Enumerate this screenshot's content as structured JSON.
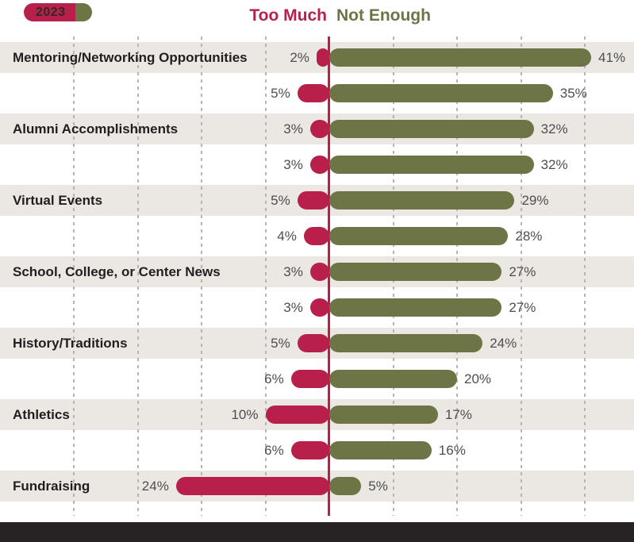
{
  "legend": {
    "year": "2023"
  },
  "headers": {
    "too_much": "Too Much",
    "not_enough": "Not Enough"
  },
  "colors": {
    "too_much_red": "#b81f4b",
    "not_enough_green": "#6d7446",
    "row_band": "#ebe7e3",
    "footer_bar": "#272324",
    "value_text": "#4e4e50",
    "category_text": "#221e1f"
  },
  "chart_data": {
    "type": "bar",
    "orientation": "horizontal-diverging",
    "title": "",
    "unit": "%",
    "series_labels": {
      "left": "Too Much",
      "right": "Not Enough"
    },
    "legend_entries": [
      "2023"
    ],
    "gridline_interval_pct": 10,
    "axis": {
      "left_max_pct": 30,
      "right_max_pct": 48,
      "grid": "dashed-vertical",
      "center_axis_color": "#b81f4b"
    },
    "rows": [
      {
        "label": "Mentoring/Networking Opportunities",
        "too_much": 2,
        "not_enough": 41,
        "shaded_band": true
      },
      {
        "label": "",
        "too_much": 5,
        "not_enough": 35,
        "shaded_band": false
      },
      {
        "label": "Alumni Accomplishments",
        "too_much": 3,
        "not_enough": 32,
        "shaded_band": true
      },
      {
        "label": "",
        "too_much": 3,
        "not_enough": 32,
        "shaded_band": false
      },
      {
        "label": "Virtual Events",
        "too_much": 5,
        "not_enough": 29,
        "shaded_band": true
      },
      {
        "label": "",
        "too_much": 4,
        "not_enough": 28,
        "shaded_band": false
      },
      {
        "label": "School, College, or Center News",
        "too_much": 3,
        "not_enough": 27,
        "shaded_band": true
      },
      {
        "label": "",
        "too_much": 3,
        "not_enough": 27,
        "shaded_band": false
      },
      {
        "label": "History/Traditions",
        "too_much": 5,
        "not_enough": 24,
        "shaded_band": true
      },
      {
        "label": "",
        "too_much": 6,
        "not_enough": 20,
        "shaded_band": false
      },
      {
        "label": "Athletics",
        "too_much": 10,
        "not_enough": 17,
        "shaded_band": true
      },
      {
        "label": "",
        "too_much": 6,
        "not_enough": 16,
        "shaded_band": false
      },
      {
        "label": "Fundraising",
        "too_much": 24,
        "not_enough": 5,
        "shaded_band": true
      }
    ]
  }
}
